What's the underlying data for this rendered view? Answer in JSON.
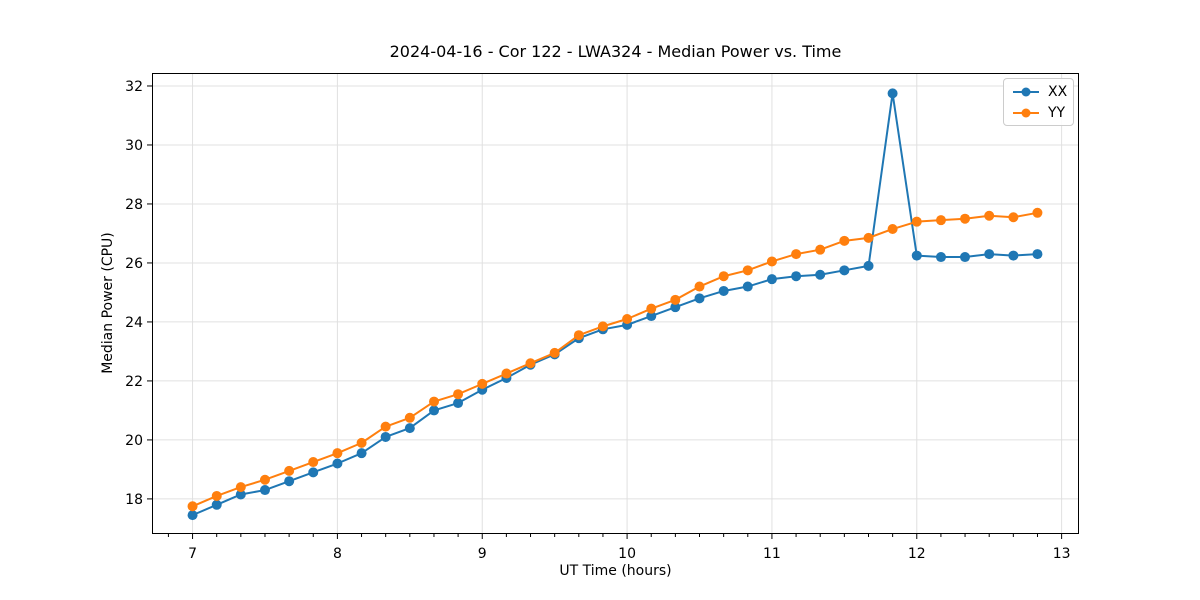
{
  "chart_data": {
    "type": "line",
    "title": "2024-04-16 - Cor 122 - LWA324 - Median Power vs. Time",
    "xlabel": "UT Time (hours)",
    "ylabel": "Median Power (CPU)",
    "xlim": [
      6.72,
      13.12
    ],
    "ylim": [
      16.81,
      32.44
    ],
    "xticks": [
      7,
      8,
      9,
      10,
      11,
      12,
      13
    ],
    "yticks": [
      18,
      20,
      22,
      24,
      26,
      28,
      30,
      32
    ],
    "x_minor_divisions_per_unit": 6,
    "grid": true,
    "grid_color": "#e0e0e0",
    "axis_color": "#000000",
    "legend_position": "upper right",
    "x": [
      7.0,
      7.167,
      7.333,
      7.5,
      7.667,
      7.833,
      8.0,
      8.167,
      8.333,
      8.5,
      8.667,
      8.833,
      9.0,
      9.167,
      9.333,
      9.5,
      9.667,
      9.833,
      10.0,
      10.167,
      10.333,
      10.5,
      10.667,
      10.833,
      11.0,
      11.167,
      11.333,
      11.5,
      11.667,
      11.833,
      12.0,
      12.167,
      12.333,
      12.5,
      12.667,
      12.833
    ],
    "series": [
      {
        "name": "XX",
        "color": "#1f77b4",
        "values": [
          17.45,
          17.8,
          18.15,
          18.3,
          18.6,
          18.9,
          19.2,
          19.55,
          20.1,
          20.4,
          21.0,
          21.25,
          21.7,
          22.1,
          22.55,
          22.9,
          23.45,
          23.75,
          23.9,
          24.2,
          24.5,
          24.8,
          25.05,
          25.2,
          25.45,
          25.55,
          25.6,
          25.75,
          25.9,
          31.75,
          26.25,
          26.2,
          26.2,
          26.3,
          26.25,
          26.3
        ]
      },
      {
        "name": "YY",
        "color": "#ff7f0e",
        "values": [
          17.75,
          18.1,
          18.4,
          18.65,
          18.95,
          19.25,
          19.55,
          19.9,
          20.45,
          20.75,
          21.3,
          21.55,
          21.9,
          22.25,
          22.6,
          22.95,
          23.55,
          23.85,
          24.1,
          24.45,
          24.75,
          25.2,
          25.55,
          25.75,
          26.05,
          26.3,
          26.45,
          26.75,
          26.85,
          27.15,
          27.4,
          27.45,
          27.5,
          27.6,
          27.55,
          27.7
        ]
      }
    ]
  }
}
